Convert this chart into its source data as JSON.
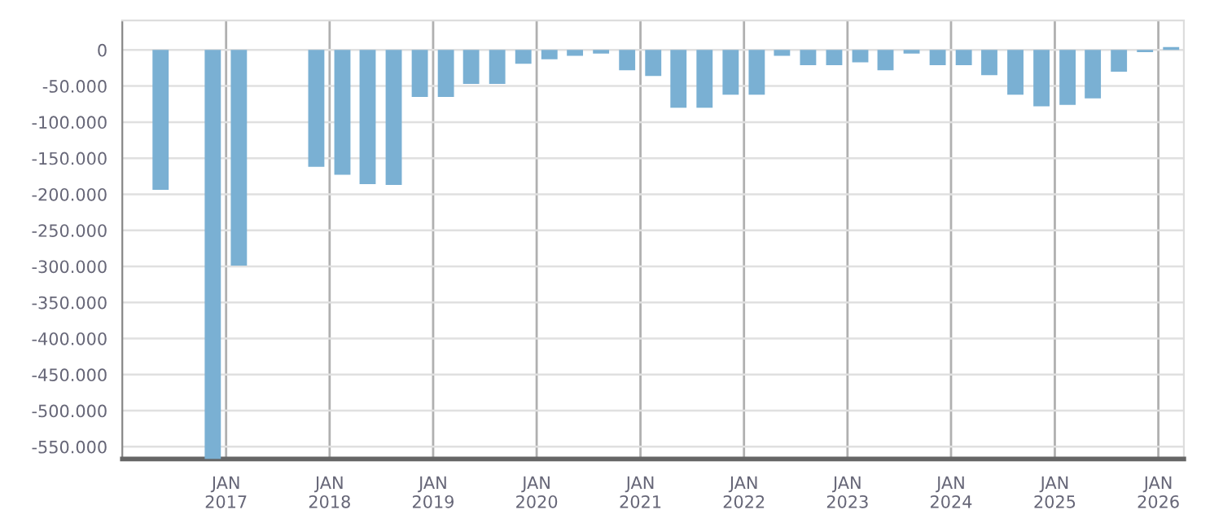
{
  "chart_data": {
    "type": "bar",
    "color": "#7ab0d3",
    "x": [
      "2016-05-15",
      "2016-11-15",
      "2017-02-15",
      "2017-11-15",
      "2018-02-15",
      "2018-05-15",
      "2018-08-15",
      "2018-11-15",
      "2019-02-15",
      "2019-05-15",
      "2019-08-15",
      "2019-11-15",
      "2020-02-15",
      "2020-05-15",
      "2020-08-15",
      "2020-11-15",
      "2021-02-15",
      "2021-05-15",
      "2021-08-15",
      "2021-11-15",
      "2022-02-15",
      "2022-05-15",
      "2022-08-15",
      "2022-11-15",
      "2023-02-15",
      "2023-05-15",
      "2023-08-15",
      "2023-11-15",
      "2024-02-15",
      "2024-05-15",
      "2024-08-15",
      "2024-11-15",
      "2025-02-15",
      "2025-05-15",
      "2025-08-15",
      "2025-11-15",
      "2026-02-15"
    ],
    "values": [
      -194000,
      -567000,
      -299000,
      -162000,
      -173000,
      -186000,
      -187000,
      -65000,
      -65000,
      -47000,
      -47000,
      -19000,
      -13000,
      -8000,
      -5000,
      -28000,
      -36000,
      -80000,
      -80000,
      -62000,
      -62000,
      -8000,
      -21000,
      -21000,
      -17000,
      -28000,
      -5000,
      -21000,
      -21000,
      -35000,
      -62000,
      -78000,
      -76000,
      -67000,
      -30000,
      -3000,
      4000
    ],
    "ylim": [
      -567000,
      41000
    ],
    "yticks": [
      0,
      {
        "value": -50000,
        "label": "-50.000"
      },
      {
        "value": -100000,
        "label": "-100.000"
      },
      {
        "value": -150000,
        "label": "-150.000"
      },
      {
        "value": -200000,
        "label": "-200.000"
      },
      {
        "value": -250000,
        "label": "-250.000"
      },
      {
        "value": -300000,
        "label": "-300.000"
      },
      {
        "value": -350000,
        "label": "-350.000"
      },
      {
        "value": -400000,
        "label": "-400.000"
      },
      {
        "value": -450000,
        "label": "-450.000"
      },
      {
        "value": -500000,
        "label": "-500.000"
      },
      {
        "value": -550000,
        "label": "-550.000"
      }
    ],
    "xlim": [
      "2016-01-01",
      "2026-04-01"
    ],
    "xticks": [
      {
        "value": "2017-01-01",
        "label": "JAN\n2017"
      },
      {
        "value": "2018-01-01",
        "label": "JAN\n2018"
      },
      {
        "value": "2019-01-01",
        "label": "JAN\n2019"
      },
      {
        "value": "2020-01-01",
        "label": "JAN\n2020"
      },
      {
        "value": "2021-01-01",
        "label": "JAN\n2021"
      },
      {
        "value": "2022-01-01",
        "label": "JAN\n2022"
      },
      {
        "value": "2023-01-01",
        "label": "JAN\n2023"
      },
      {
        "value": "2024-01-01",
        "label": "JAN\n2024"
      },
      {
        "value": "2025-01-01",
        "label": "JAN\n2025"
      },
      {
        "value": "2026-01-01",
        "label": "JAN\n2026"
      }
    ],
    "grid": true
  }
}
